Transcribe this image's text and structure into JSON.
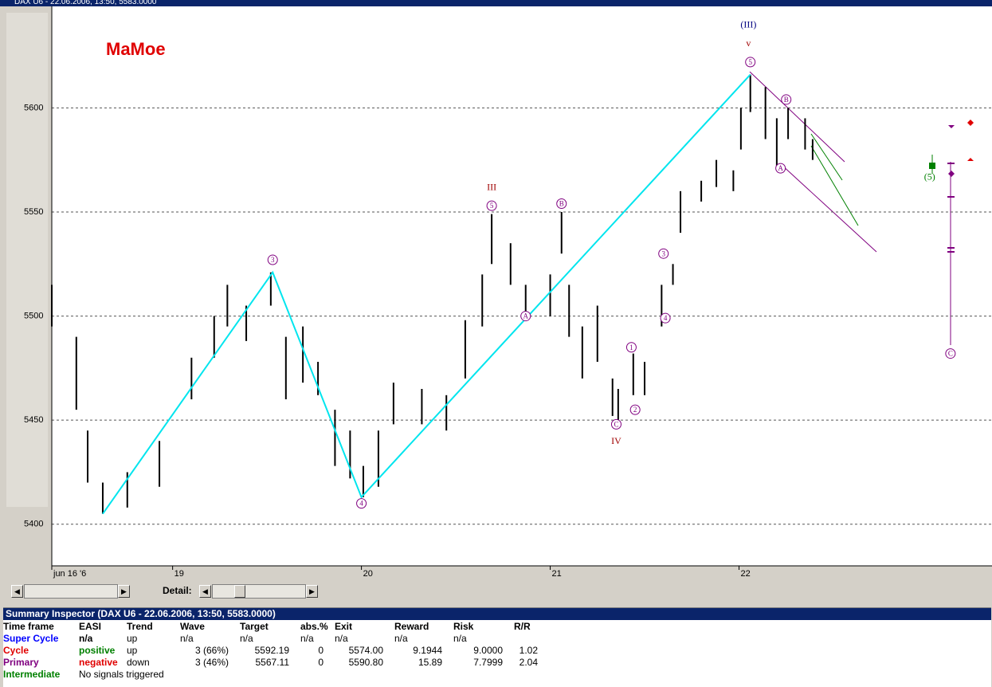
{
  "window": {
    "title": "DAX U6 - 22.06.2006, 13:50, 5583.0000",
    "detail_label": "Detail:"
  },
  "chart_data": {
    "type": "ohlc",
    "watermark": "MaMoe",
    "color": "#000000",
    "x": [
      0,
      0.13,
      0.19,
      0.27,
      0.4,
      0.57,
      0.74,
      0.86,
      0.93,
      1.03,
      1.16,
      1.24,
      1.33,
      1.41,
      1.5,
      1.58,
      1.65,
      1.73,
      1.81,
      1.96,
      2.09,
      2.19,
      2.28,
      2.33,
      2.43,
      2.51,
      2.64,
      2.7,
      2.74,
      2.81,
      2.89,
      2.97,
      3.0,
      3.08,
      3.14,
      3.23,
      3.29,
      3.33,
      3.44,
      3.52,
      3.61,
      3.65,
      3.7,
      3.78,
      3.84,
      3.9,
      3.99,
      4.03
    ],
    "high": [
      5515,
      5490,
      5445,
      5420,
      5425,
      5440,
      5480,
      5500,
      5515,
      5505,
      5521,
      5490,
      5495,
      5478,
      5455,
      5445,
      5428,
      5445,
      5468,
      5465,
      5462,
      5498,
      5520,
      5549,
      5535,
      5515,
      5520,
      5550,
      5515,
      5495,
      5505,
      5470,
      5465,
      5482,
      5478,
      5515,
      5525,
      5560,
      5565,
      5575,
      5570,
      5600,
      5616,
      5610,
      5595,
      5600,
      5595,
      5585
    ],
    "low": [
      5495,
      5455,
      5420,
      5405,
      5408,
      5418,
      5460,
      5480,
      5495,
      5488,
      5505,
      5460,
      5468,
      5462,
      5428,
      5422,
      5413,
      5418,
      5448,
      5448,
      5445,
      5470,
      5495,
      5525,
      5515,
      5498,
      5500,
      5530,
      5490,
      5470,
      5478,
      5452,
      5450,
      5462,
      5462,
      5495,
      5515,
      5540,
      5555,
      5562,
      5560,
      5580,
      5598,
      5585,
      5570,
      5585,
      5580,
      5575
    ],
    "wave_line": {
      "color": "#00e5ee",
      "x": [
        0.27,
        1.17,
        1.64,
        3.7
      ],
      "values": [
        5405,
        5521,
        5413,
        5616
      ]
    },
    "annotations": [
      {
        "text": "3",
        "x": 1.17,
        "y": 5527,
        "color": "#800080",
        "circled": true
      },
      {
        "text": "4",
        "x": 1.64,
        "y": 5410,
        "color": "#800080",
        "circled": true
      },
      {
        "text": "5",
        "x": 2.33,
        "y": 5553,
        "color": "#800080",
        "circled": true
      },
      {
        "text": "A",
        "x": 2.51,
        "y": 5500,
        "color": "#800080",
        "circled": true
      },
      {
        "text": "B",
        "x": 2.7,
        "y": 5554,
        "color": "#800080",
        "circled": true
      },
      {
        "text": "C",
        "x": 2.99,
        "y": 5448,
        "color": "#800080",
        "circled": true
      },
      {
        "text": "1",
        "x": 3.07,
        "y": 5485,
        "color": "#800080",
        "circled": true
      },
      {
        "text": "2",
        "x": 3.09,
        "y": 5455,
        "color": "#800080",
        "circled": true
      },
      {
        "text": "3",
        "x": 3.24,
        "y": 5530,
        "color": "#800080",
        "circled": true
      },
      {
        "text": "4",
        "x": 3.25,
        "y": 5499,
        "color": "#800080",
        "circled": true
      },
      {
        "text": "5",
        "x": 3.7,
        "y": 5622,
        "color": "#800080",
        "circled": true
      },
      {
        "text": "B",
        "x": 3.89,
        "y": 5604,
        "color": "#800080",
        "circled": true
      },
      {
        "text": "A",
        "x": 3.86,
        "y": 5571,
        "color": "#800080",
        "circled": true
      },
      {
        "text": "C",
        "x": 4.76,
        "y": 5482,
        "color": "#800080",
        "circled": true
      },
      {
        "text": "(5)",
        "x": 4.65,
        "y": 5567,
        "color": "#008000",
        "circled": false
      },
      {
        "text": "III",
        "x": 2.33,
        "y": 5562,
        "color": "#a00000",
        "circled": false
      },
      {
        "text": "IV",
        "x": 2.99,
        "y": 5440,
        "color": "#a00000",
        "circled": false
      },
      {
        "text": "v",
        "x": 3.69,
        "y": 5631,
        "color": "#a00000",
        "circled": false
      },
      {
        "text": "(III)",
        "x": 3.69,
        "y": 5640,
        "color": "#000080",
        "circled": false
      }
    ],
    "xlim": [
      0,
      4.98
    ],
    "ylim": [
      5380,
      5648
    ],
    "xticks": [
      {
        "value": 0,
        "label": "jun 16 '6"
      },
      {
        "value": 0.64,
        "label": "19"
      },
      {
        "value": 1.64,
        "label": "20"
      },
      {
        "value": 2.64,
        "label": "21"
      },
      {
        "value": 3.64,
        "label": "22"
      }
    ],
    "yticks": [
      5400,
      5450,
      5500,
      5550,
      5600
    ],
    "grid": true
  },
  "summary": {
    "title": "Summary Inspector (DAX U6 - 22.06.2006, 13:50, 5583.0000)",
    "columns": [
      "Time frame",
      "EASI",
      "Trend",
      "Wave",
      "Target",
      "abs.%",
      "Exit",
      "Reward",
      "Risk",
      "R/R"
    ],
    "rows": [
      [
        "Super Cycle",
        "n/a",
        "up",
        "n/a",
        "n/a",
        "n/a",
        "n/a",
        "n/a",
        "n/a"
      ],
      [
        "Cycle",
        "positive",
        "up",
        "3 (66%)",
        "5592.19",
        "0",
        "5574.00",
        "9.1944",
        "9.0000",
        "1.02"
      ],
      [
        "Primary",
        "negative",
        "down",
        "3 (46%)",
        "5567.11",
        "0",
        "5590.80",
        "15.89",
        "7.7999",
        "2.04"
      ],
      [
        "Intermediate",
        "No signals triggered"
      ]
    ]
  }
}
